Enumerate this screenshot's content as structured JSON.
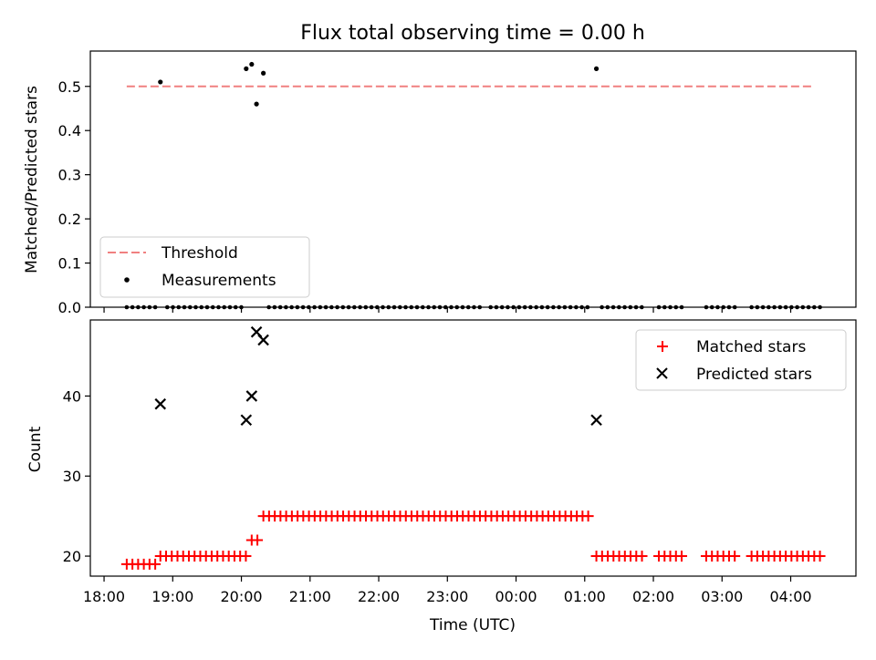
{
  "chart_data": [
    {
      "type": "scatter",
      "title": "Flux total observing time = 0.00 h",
      "ylabel": "Matched/Predicted stars",
      "ylim": [
        0,
        0.58
      ],
      "yticks": [
        "0.0",
        "0.1",
        "0.2",
        "0.3",
        "0.4",
        "0.5"
      ],
      "xlim_hours": [
        17.8,
        28.95
      ],
      "threshold": {
        "name": "Threshold",
        "value": 0.5,
        "x_start": 18.33,
        "x_end": 28.35,
        "color": "#f08080"
      },
      "legend": {
        "placement": "lower-left",
        "entries": [
          "Threshold",
          "Measurements"
        ]
      },
      "series": [
        {
          "name": "Measurements",
          "color": "#000000",
          "points": [
            {
              "x": 18.82,
              "y": 0.51
            },
            {
              "x": 20.07,
              "y": 0.54
            },
            {
              "x": 20.15,
              "y": 0.55
            },
            {
              "x": 20.22,
              "y": 0.46
            },
            {
              "x": 20.32,
              "y": 0.53
            },
            {
              "x": 25.17,
              "y": 0.54
            }
          ],
          "zero_segments": [
            {
              "start": 18.33,
              "end": 18.75,
              "step": 0.083
            },
            {
              "start": 18.92,
              "end": 20.0,
              "step": 0.083
            },
            {
              "start": 20.4,
              "end": 23.53,
              "step": 0.083
            },
            {
              "start": 23.63,
              "end": 25.05,
              "step": 0.083
            },
            {
              "start": 25.25,
              "end": 25.88,
              "step": 0.083
            },
            {
              "start": 26.08,
              "end": 26.42,
              "step": 0.083
            },
            {
              "start": 26.77,
              "end": 27.25,
              "step": 0.083
            },
            {
              "start": 27.43,
              "end": 28.45,
              "step": 0.083
            }
          ]
        }
      ]
    },
    {
      "type": "scatter",
      "xlabel": "Time (UTC)",
      "ylabel": "Count",
      "ylim": [
        17.5,
        49.5
      ],
      "yticks": [
        "20",
        "30",
        "40"
      ],
      "xticks": [
        "18:00",
        "19:00",
        "20:00",
        "21:00",
        "22:00",
        "23:00",
        "00:00",
        "01:00",
        "02:00",
        "03:00",
        "04:00"
      ],
      "legend": {
        "placement": "top-right",
        "entries": [
          "Matched stars",
          "Predicted stars"
        ]
      },
      "series": [
        {
          "name": "Matched stars",
          "marker": "plus",
          "color": "#ff0000",
          "segments": [
            {
              "start": 18.33,
              "end": 18.75,
              "step": 0.083,
              "y": 19
            },
            {
              "start": 18.82,
              "end": 20.07,
              "step": 0.083,
              "y": 20
            },
            {
              "start": 20.15,
              "end": 20.25,
              "step": 0.083,
              "y": 22
            },
            {
              "start": 20.32,
              "end": 25.1,
              "step": 0.083,
              "y": 25
            },
            {
              "start": 25.17,
              "end": 25.88,
              "step": 0.083,
              "y": 20
            },
            {
              "start": 26.08,
              "end": 26.42,
              "step": 0.083,
              "y": 20
            },
            {
              "start": 26.77,
              "end": 27.25,
              "step": 0.083,
              "y": 20
            },
            {
              "start": 27.43,
              "end": 28.45,
              "step": 0.083,
              "y": 20
            }
          ]
        },
        {
          "name": "Predicted stars",
          "marker": "x",
          "color": "#000000",
          "points": [
            {
              "x": 18.82,
              "y": 39
            },
            {
              "x": 20.07,
              "y": 37
            },
            {
              "x": 20.15,
              "y": 40
            },
            {
              "x": 20.22,
              "y": 48
            },
            {
              "x": 20.32,
              "y": 47
            },
            {
              "x": 25.17,
              "y": 37
            }
          ]
        }
      ]
    }
  ]
}
